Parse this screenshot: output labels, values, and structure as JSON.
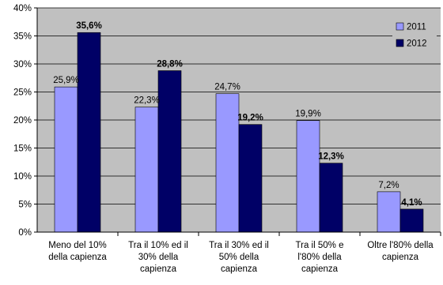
{
  "colors": {
    "plot_background": "#c0c0c0",
    "series_2011": "#9999ff",
    "series_2012": "#000066",
    "text": "#000000"
  },
  "chart_data": {
    "type": "bar",
    "title": "",
    "xlabel": "",
    "ylabel": "",
    "ylim": [
      0,
      40
    ],
    "ytick_labels": [
      "0%",
      "5%",
      "10%",
      "15%",
      "20%",
      "25%",
      "30%",
      "35%",
      "40%"
    ],
    "ytick_values": [
      0,
      5,
      10,
      15,
      20,
      25,
      30,
      35,
      40
    ],
    "grid": true,
    "legend_position": "top-right",
    "categories": [
      [
        "Meno del 10%",
        "della capienza"
      ],
      [
        "Tra il 10% ed il",
        "30% della",
        "capienza"
      ],
      [
        "Tra il 30% ed il",
        "50% della",
        "capienza"
      ],
      [
        "Tra il 50% e",
        "l'80% della",
        "capienza"
      ],
      [
        "Oltre l'80% della",
        "capienza"
      ]
    ],
    "series": [
      {
        "name": "2011",
        "color": "#9999ff",
        "values": [
          25.9,
          22.3,
          24.7,
          19.9,
          7.2
        ],
        "labels": [
          "25,9%",
          "22,3%",
          "24,7%",
          "19,9%",
          "7,2%"
        ],
        "label_bold": false
      },
      {
        "name": "2012",
        "color": "#000066",
        "values": [
          35.6,
          28.8,
          19.2,
          12.3,
          4.1
        ],
        "labels": [
          "35,6%",
          "28,8%",
          "19,2%",
          "12,3%",
          "4,1%"
        ],
        "label_bold": true
      }
    ]
  }
}
